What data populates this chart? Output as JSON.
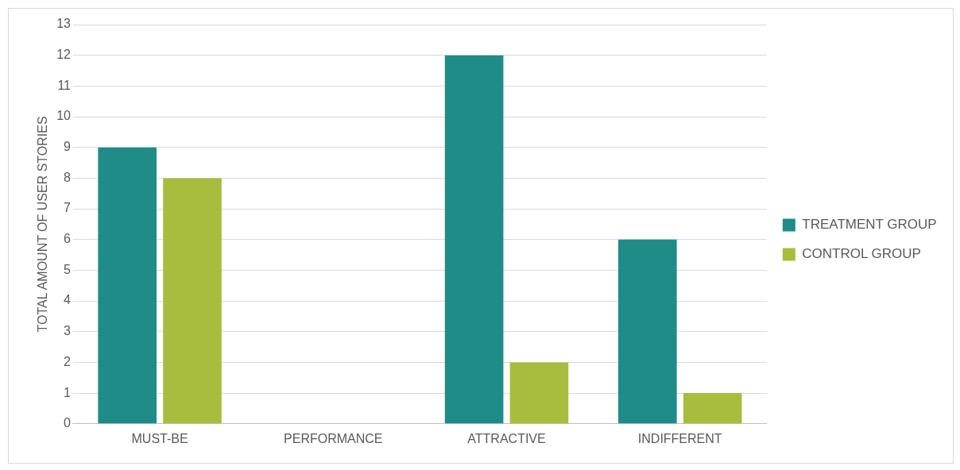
{
  "chart_data": {
    "type": "bar",
    "ylabel": "TOTAL AMOUNT OF USER STORIES",
    "categories": [
      "MUST-BE",
      "PERFORMANCE",
      "ATTRACTIVE",
      "INDIFFERENT"
    ],
    "series": [
      {
        "name": "TREATMENT GROUP",
        "color": "#1f8c88",
        "values": [
          9,
          0,
          12,
          6
        ]
      },
      {
        "name": "CONTROL GROUP",
        "color": "#a8bd3e",
        "values": [
          8,
          0,
          2,
          1
        ]
      }
    ],
    "ylim": [
      0,
      13
    ],
    "yticks": [
      0,
      1,
      2,
      3,
      4,
      5,
      6,
      7,
      8,
      9,
      10,
      11,
      12,
      13
    ],
    "grid": "y",
    "legend": "right"
  }
}
